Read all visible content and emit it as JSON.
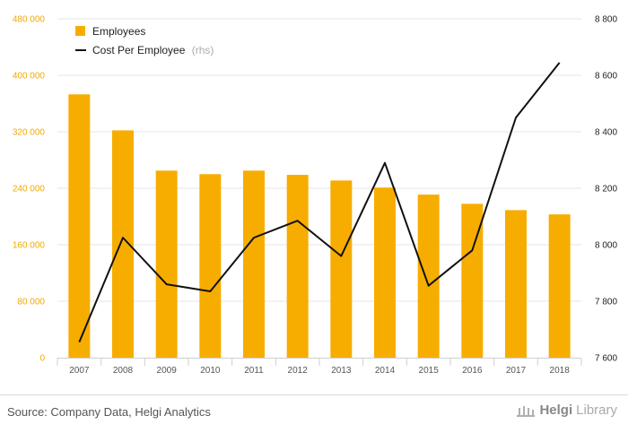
{
  "chart_data": {
    "type": "bar+line",
    "categories": [
      "2007",
      "2008",
      "2009",
      "2010",
      "2011",
      "2012",
      "2013",
      "2014",
      "2015",
      "2016",
      "2017",
      "2018"
    ],
    "series": [
      {
        "name": "Employees",
        "kind": "bar",
        "axis": "left",
        "color": "#f7ad00",
        "values": [
          373000,
          322000,
          265000,
          260000,
          265000,
          259000,
          251000,
          241000,
          231000,
          218000,
          209000,
          203000
        ]
      },
      {
        "name": "Cost Per Employee",
        "note": "(rhs)",
        "kind": "line",
        "axis": "right",
        "color": "#111111",
        "values": [
          7655,
          8025,
          7860,
          7835,
          8025,
          8085,
          7960,
          8290,
          7855,
          7980,
          8450,
          8645
        ]
      }
    ],
    "left_axis": {
      "range": [
        0,
        480000
      ],
      "ticks": [
        0,
        80000,
        160000,
        240000,
        320000,
        400000,
        480000
      ],
      "tick_labels": [
        "0",
        "80 000",
        "160 000",
        "240 000",
        "320 000",
        "400 000",
        "480 000"
      ],
      "color": "#f2a900"
    },
    "right_axis": {
      "range": [
        7600,
        8800
      ],
      "ticks": [
        7600,
        7800,
        8000,
        8200,
        8400,
        8600,
        8800
      ],
      "tick_labels": [
        "7 600",
        "7 800",
        "8 000",
        "8 200",
        "8 400",
        "8 600",
        "8 800"
      ],
      "color": "#222222"
    },
    "grid": true,
    "legend_position": "top-left"
  },
  "footer": {
    "source": "Source: Company Data, Helgi Analytics",
    "brand_part1": "Helgi",
    "brand_part2": "Library"
  }
}
